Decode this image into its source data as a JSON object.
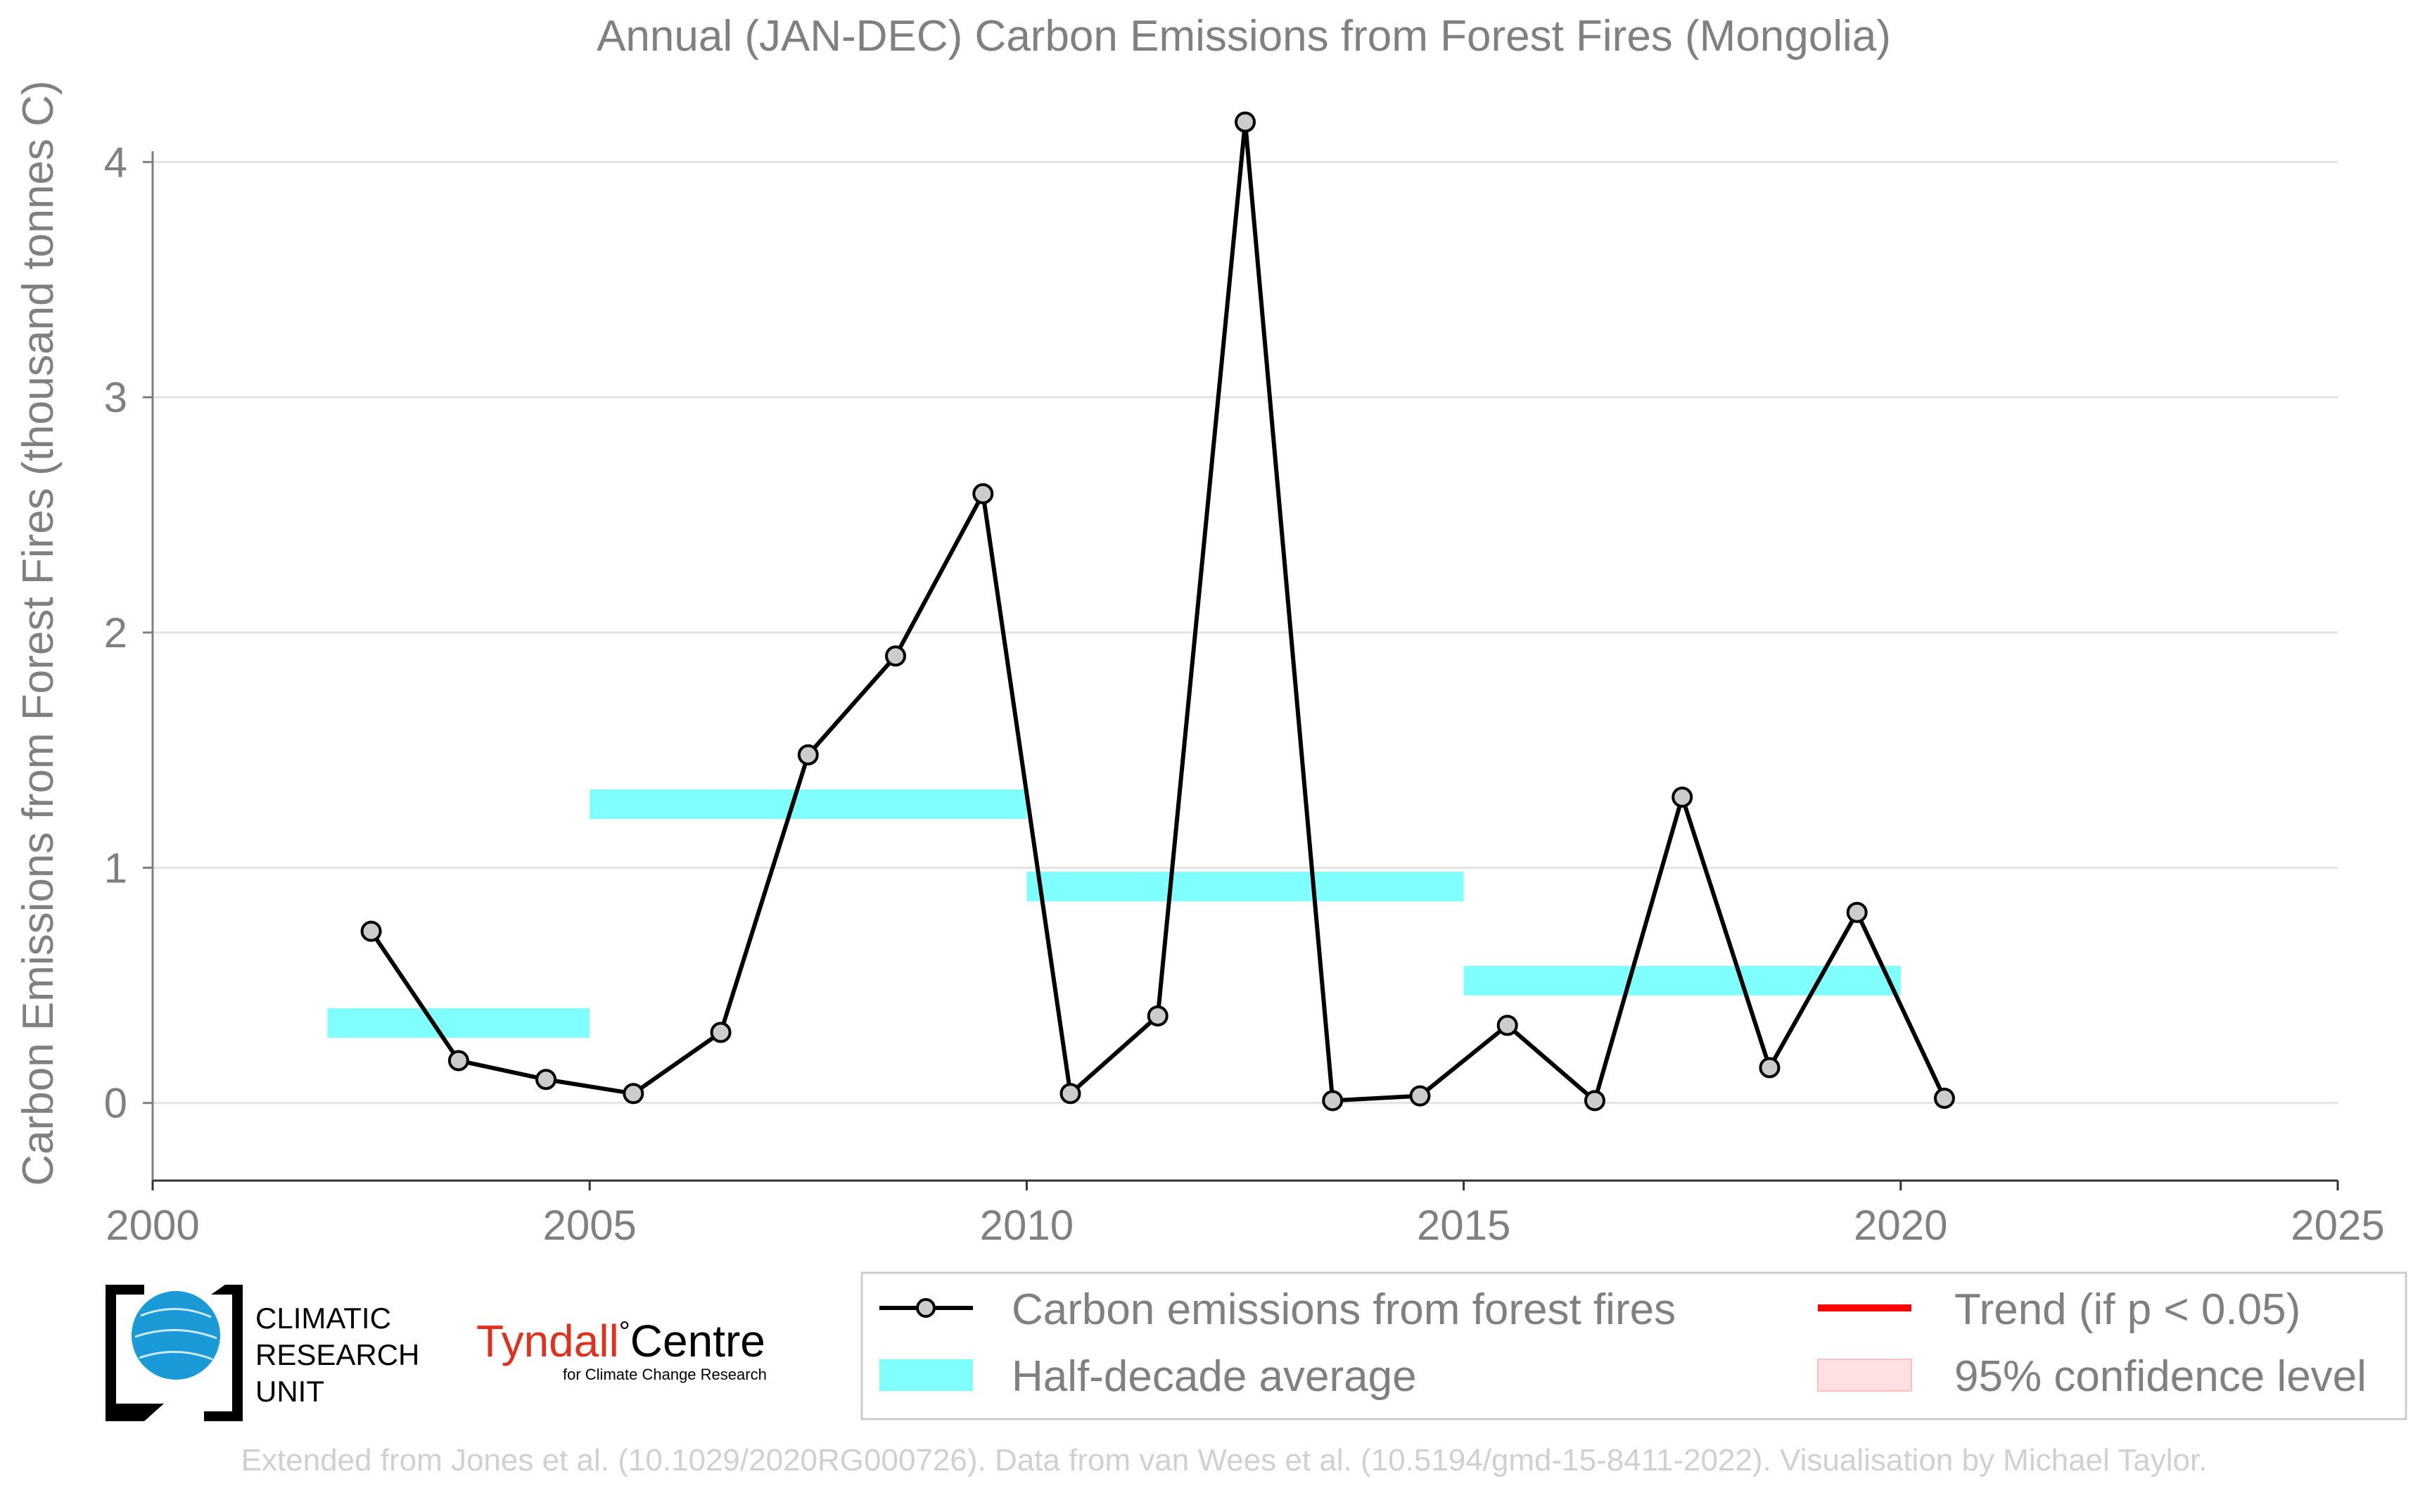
{
  "chart_data": {
    "type": "line",
    "title": "Annual (JAN-DEC) Carbon Emissions from Forest Fires (Mongolia)",
    "xlabel": "",
    "ylabel": "Carbon Emissions from Forest Fires (thousand tonnes C)",
    "xlim": [
      2000,
      2025
    ],
    "ylim": [
      -0.33,
      4.3
    ],
    "xticks": [
      "2000",
      "2005",
      "2010",
      "2015",
      "2020",
      "2025"
    ],
    "yticks": [
      "0",
      "1",
      "2",
      "3",
      "4"
    ],
    "grid": "horizontal",
    "legend_placement": "bottom-right",
    "series": [
      {
        "name": "Carbon emissions from forest fires",
        "type": "line",
        "color": "#000000",
        "marker_fill": "#cccccc",
        "x": [
          2002.5,
          2003.5,
          2004.5,
          2005.5,
          2006.5,
          2007.5,
          2008.5,
          2009.5,
          2010.5,
          2011.5,
          2012.5,
          2013.5,
          2014.5,
          2015.5,
          2016.5,
          2017.5,
          2018.5,
          2019.5,
          2020.5
        ],
        "values": [
          0.73,
          0.18,
          0.1,
          0.04,
          0.3,
          1.48,
          1.9,
          2.59,
          0.04,
          0.37,
          4.17,
          0.01,
          0.03,
          0.33,
          0.01,
          1.3,
          0.15,
          0.81,
          0.02
        ]
      },
      {
        "name": "Half-decade average",
        "type": "bar-segment",
        "color": "#80ffff",
        "segments": [
          {
            "x0": 2002,
            "x1": 2005,
            "value": 0.34
          },
          {
            "x0": 2005,
            "x1": 2010,
            "value": 1.27
          },
          {
            "x0": 2010,
            "x1": 2015,
            "value": 0.92
          },
          {
            "x0": 2015,
            "x1": 2020,
            "value": 0.52
          }
        ]
      }
    ]
  },
  "legend": {
    "items": [
      {
        "label": "Carbon emissions from forest fires",
        "swatch": "line-marker",
        "color": "#000000"
      },
      {
        "label": "Trend (if p < 0.05)",
        "swatch": "line",
        "color": "#ff0000"
      },
      {
        "label": "Half-decade average",
        "swatch": "patch",
        "color": "#80ffff"
      },
      {
        "label": "95% confidence level",
        "swatch": "patch",
        "color": "#ffe0e0"
      }
    ]
  },
  "logos": {
    "cru_line1": "CLIMATIC",
    "cru_line2": "RESEARCH",
    "cru_line3": "UNIT",
    "tyndall_name_a": "Tyndall",
    "tyndall_degree": "°",
    "tyndall_name_b": "Centre",
    "tyndall_sub": "for Climate Change Research"
  },
  "footer": "Extended from Jones et al. (10.1029/2020RG000726). Data from van Wees et al. (10.5194/gmd-15-8411-2022). Visualisation by Michael Taylor."
}
